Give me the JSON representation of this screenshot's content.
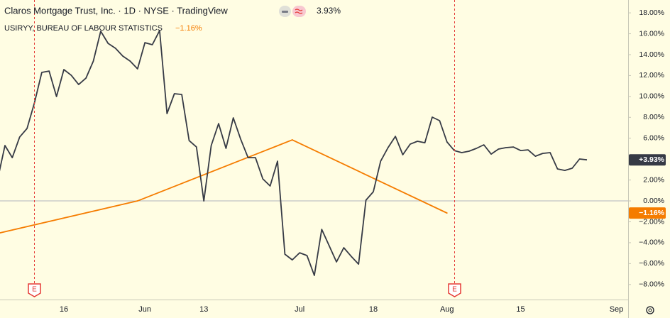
{
  "chart_data": {
    "type": "line",
    "categories": [
      null,
      null,
      null,
      null,
      null,
      null,
      null,
      null,
      null,
      "16",
      null,
      null,
      null,
      null,
      null,
      null,
      null,
      null,
      null,
      null,
      "Jun",
      null,
      null,
      null,
      null,
      null,
      null,
      null,
      "13",
      null,
      null,
      null,
      null,
      null,
      null,
      null,
      null,
      null,
      null,
      null,
      null,
      "Jul",
      null,
      null,
      null,
      null,
      null,
      null,
      null,
      null,
      null,
      "18",
      null,
      null,
      null,
      null,
      null,
      null,
      null,
      null,
      null,
      "Aug",
      null,
      null,
      null,
      null,
      null,
      null,
      null,
      null,
      null,
      "15",
      null,
      null,
      null,
      null,
      null,
      null,
      null,
      null,
      null,
      null,
      null,
      null,
      "Sep"
    ],
    "series": [
      {
        "name": "Claros Mortgage Trust, Inc. · 1D · NYSE · TradingView",
        "color": "#363a45",
        "legend_value_label": "3.93%",
        "last_value_label": "+3.93%",
        "values": [
          2.04,
          5.3,
          4.14,
          6.11,
          6.93,
          9.38,
          12.3,
          12.43,
          9.99,
          12.57,
          12.02,
          11.14,
          11.75,
          13.38,
          16.24,
          15.08,
          14.61,
          13.86,
          13.38,
          12.64,
          15.15,
          14.95,
          16.3,
          8.36,
          10.26,
          10.19,
          5.77,
          5.16,
          0,
          5.3,
          7.4,
          5.03,
          7.95,
          5.91,
          4.14,
          4.14,
          2.11,
          1.43,
          3.8,
          -5.1,
          -5.64,
          -4.96,
          -5.23,
          -7.13,
          -2.72,
          -4.28,
          -5.84,
          -4.48,
          -5.3,
          -6.05,
          0.07,
          0.88,
          3.8,
          5.1,
          6.18,
          4.42,
          5.43,
          5.71,
          5.57,
          8.02,
          7.68,
          5.64,
          4.82,
          4.62,
          4.76,
          5.03,
          5.37,
          4.48,
          4.96,
          5.1,
          5.16,
          4.82,
          4.89,
          4.28,
          4.55,
          4.62,
          3.06,
          2.92,
          3.13,
          4.01,
          3.93,
          null,
          null,
          null,
          null
        ]
      },
      {
        "name": "USIRYY, BUREAU OF LABOUR STATISTICS",
        "color": "#f57c00",
        "legend_value_label": "−1.16%",
        "last_value_label": "−1.16%",
        "values": [
          -3.11,
          null,
          null,
          null,
          null,
          null,
          null,
          null,
          null,
          null,
          null,
          null,
          null,
          null,
          null,
          null,
          null,
          null,
          null,
          0,
          null,
          null,
          null,
          null,
          null,
          null,
          null,
          null,
          null,
          null,
          null,
          null,
          null,
          null,
          null,
          null,
          null,
          null,
          null,
          null,
          5.84,
          null,
          null,
          null,
          null,
          null,
          null,
          null,
          null,
          null,
          null,
          null,
          null,
          null,
          null,
          null,
          null,
          null,
          null,
          null,
          null,
          -1.16,
          null,
          null,
          null,
          null,
          null,
          null,
          null,
          null,
          null,
          null,
          null,
          null,
          null,
          null,
          null,
          null,
          null,
          null,
          null,
          null,
          null,
          null,
          null
        ]
      }
    ],
    "ylim": [
      -9.44,
      19.23
    ],
    "yticks": [
      {
        "value": 18,
        "label": "18.00%"
      },
      {
        "value": 16,
        "label": "16.00%"
      },
      {
        "value": 14,
        "label": "14.00%"
      },
      {
        "value": 12,
        "label": "12.00%"
      },
      {
        "value": 10,
        "label": "10.00%"
      },
      {
        "value": 8,
        "label": "8.00%"
      },
      {
        "value": 6,
        "label": "6.00%"
      },
      {
        "value": 4,
        "label": "4.00%"
      },
      {
        "value": 2,
        "label": "2.00%"
      },
      {
        "value": 0,
        "label": "0.00%"
      },
      {
        "value": -2,
        "label": "−2.00%"
      },
      {
        "value": -4,
        "label": "−4.00%"
      },
      {
        "value": -6,
        "label": "−6.00%"
      },
      {
        "value": -8,
        "label": "−8.00%"
      }
    ],
    "zero_line": true,
    "grid": false,
    "earnings_markers": [
      "E",
      "E"
    ]
  }
}
